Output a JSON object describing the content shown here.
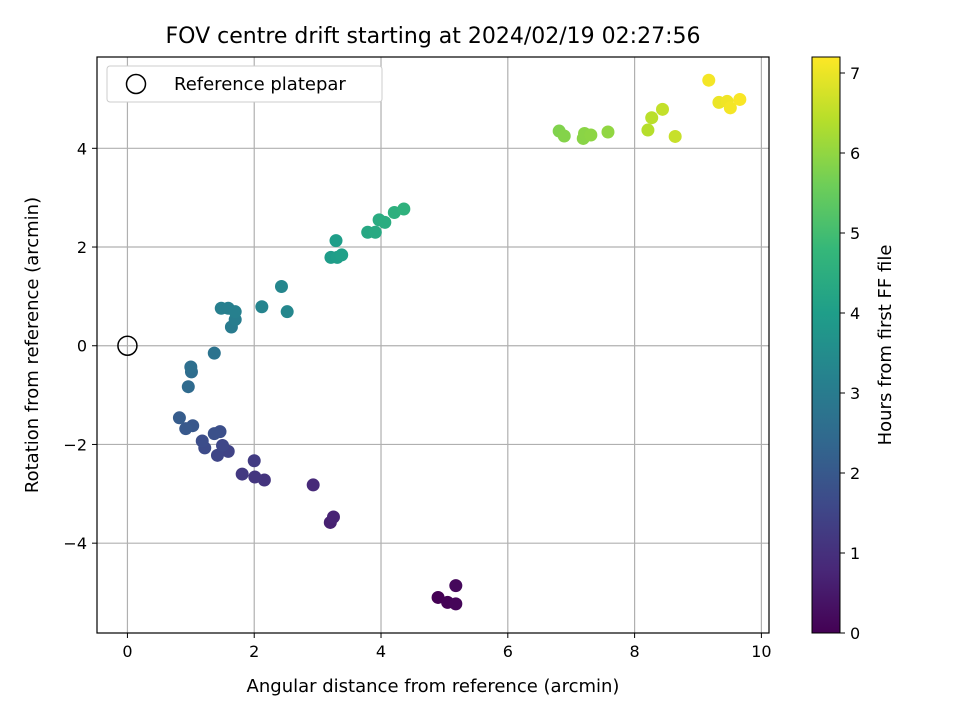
{
  "chart_data": {
    "type": "scatter",
    "title": "FOV centre drift starting at 2024/02/19 02:27:56",
    "xlabel": "Angular distance from reference (arcmin)",
    "ylabel": "Rotation from reference (arcmin)",
    "colorbar_label": "Hours from first FF file",
    "xlim": [
      -0.48,
      10.12
    ],
    "ylim": [
      -5.82,
      5.85
    ],
    "clim": [
      0,
      7.2
    ],
    "xticks": [
      0,
      2,
      4,
      6,
      8,
      10
    ],
    "yticks": [
      -4,
      -2,
      0,
      2,
      4
    ],
    "cticks": [
      0,
      1,
      2,
      3,
      4,
      5,
      6,
      7
    ],
    "grid": true,
    "legend": {
      "position": "top-left",
      "entries": [
        "Reference platepar"
      ]
    },
    "reference_point": {
      "x": 0,
      "y": 0
    },
    "colormap": [
      "#440154",
      "#482878",
      "#3e4989",
      "#31688e",
      "#26828e",
      "#1f9e89",
      "#35b779",
      "#6ece58",
      "#b5de2b",
      "#fde725"
    ],
    "points": [
      {
        "x": 4.9,
        "y": -5.1,
        "t": 0.0
      },
      {
        "x": 5.05,
        "y": -5.2,
        "t": 0.05
      },
      {
        "x": 5.18,
        "y": -5.23,
        "t": 0.1
      },
      {
        "x": 5.18,
        "y": -4.86,
        "t": 0.15
      },
      {
        "x": 3.2,
        "y": -3.58,
        "t": 0.65
      },
      {
        "x": 3.25,
        "y": -3.47,
        "t": 0.7
      },
      {
        "x": 2.93,
        "y": -2.82,
        "t": 0.85
      },
      {
        "x": 2.16,
        "y": -2.72,
        "t": 1.1
      },
      {
        "x": 2.01,
        "y": -2.66,
        "t": 1.15
      },
      {
        "x": 1.81,
        "y": -2.6,
        "t": 1.2
      },
      {
        "x": 2.0,
        "y": -2.33,
        "t": 1.25
      },
      {
        "x": 1.59,
        "y": -2.14,
        "t": 1.45
      },
      {
        "x": 1.42,
        "y": -2.22,
        "t": 1.5
      },
      {
        "x": 1.5,
        "y": -2.02,
        "t": 1.55
      },
      {
        "x": 1.22,
        "y": -2.07,
        "t": 1.65
      },
      {
        "x": 1.18,
        "y": -1.93,
        "t": 1.7
      },
      {
        "x": 1.46,
        "y": -1.74,
        "t": 1.75
      },
      {
        "x": 1.37,
        "y": -1.78,
        "t": 1.8
      },
      {
        "x": 1.03,
        "y": -1.62,
        "t": 1.95
      },
      {
        "x": 0.92,
        "y": -1.68,
        "t": 2.0
      },
      {
        "x": 0.82,
        "y": -1.46,
        "t": 2.1
      },
      {
        "x": 0.96,
        "y": -0.83,
        "t": 2.5
      },
      {
        "x": 1.01,
        "y": -0.53,
        "t": 2.55
      },
      {
        "x": 1.0,
        "y": -0.43,
        "t": 2.6
      },
      {
        "x": 1.37,
        "y": -0.15,
        "t": 2.75
      },
      {
        "x": 1.64,
        "y": 0.38,
        "t": 3.0
      },
      {
        "x": 1.7,
        "y": 0.53,
        "t": 3.05
      },
      {
        "x": 1.48,
        "y": 0.76,
        "t": 3.1
      },
      {
        "x": 1.59,
        "y": 0.76,
        "t": 3.12
      },
      {
        "x": 1.7,
        "y": 0.69,
        "t": 3.15
      },
      {
        "x": 2.12,
        "y": 0.79,
        "t": 3.25
      },
      {
        "x": 2.52,
        "y": 0.69,
        "t": 3.35
      },
      {
        "x": 2.43,
        "y": 1.2,
        "t": 3.3
      },
      {
        "x": 3.21,
        "y": 1.79,
        "t": 3.95
      },
      {
        "x": 3.31,
        "y": 1.79,
        "t": 4.0
      },
      {
        "x": 3.38,
        "y": 1.84,
        "t": 4.05
      },
      {
        "x": 3.29,
        "y": 2.13,
        "t": 4.0
      },
      {
        "x": 3.79,
        "y": 2.3,
        "t": 4.3
      },
      {
        "x": 3.91,
        "y": 2.3,
        "t": 4.35
      },
      {
        "x": 3.97,
        "y": 2.55,
        "t": 4.4
      },
      {
        "x": 4.06,
        "y": 2.5,
        "t": 4.45
      },
      {
        "x": 4.21,
        "y": 2.7,
        "t": 4.55
      },
      {
        "x": 4.36,
        "y": 2.77,
        "t": 4.6
      },
      {
        "x": 6.81,
        "y": 4.35,
        "t": 5.8
      },
      {
        "x": 6.89,
        "y": 4.25,
        "t": 5.85
      },
      {
        "x": 7.19,
        "y": 4.2,
        "t": 5.9
      },
      {
        "x": 7.21,
        "y": 4.3,
        "t": 5.92
      },
      {
        "x": 7.31,
        "y": 4.27,
        "t": 5.95
      },
      {
        "x": 7.58,
        "y": 4.33,
        "t": 6.0
      },
      {
        "x": 8.21,
        "y": 4.37,
        "t": 6.4
      },
      {
        "x": 8.27,
        "y": 4.62,
        "t": 6.45
      },
      {
        "x": 8.44,
        "y": 4.79,
        "t": 6.55
      },
      {
        "x": 8.64,
        "y": 4.24,
        "t": 6.6
      },
      {
        "x": 9.17,
        "y": 5.38,
        "t": 7.1
      },
      {
        "x": 9.33,
        "y": 4.93,
        "t": 7.0
      },
      {
        "x": 9.46,
        "y": 4.95,
        "t": 7.05
      },
      {
        "x": 9.51,
        "y": 4.82,
        "t": 7.1
      },
      {
        "x": 9.66,
        "y": 4.99,
        "t": 7.15
      }
    ]
  }
}
